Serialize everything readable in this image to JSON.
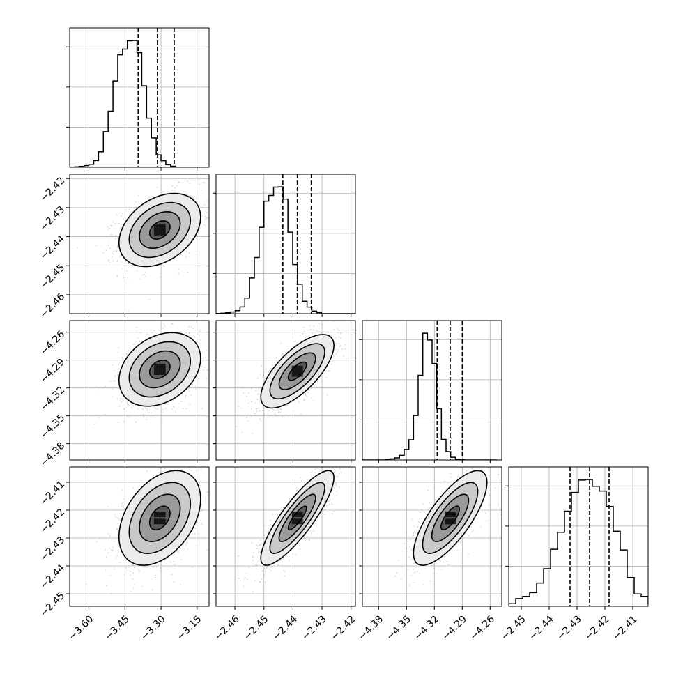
{
  "chart_data": {
    "type": "corner",
    "n_params": 4,
    "grid": true,
    "colors": {
      "contour": "#000000",
      "scatter": "#8c8c8c",
      "density_max": "#000000",
      "grid": "#b0b0b0"
    },
    "parameters": [
      {
        "range": [
          -3.68,
          -3.1
        ],
        "ticks": [
          "−3.60",
          "−3.45",
          "−3.30",
          "−3.15"
        ],
        "tick_values": [
          -3.6,
          -3.45,
          -3.3,
          -3.15
        ],
        "quantiles": [
          -3.395,
          -3.315,
          -3.245
        ],
        "histogram": {
          "edges_start": -3.68,
          "bin_width": 0.02,
          "counts": [
            1,
            2,
            4,
            8,
            14,
            32,
            74,
            170,
            268,
            412,
            537,
            564,
            604,
            605,
            547,
            389,
            234,
            140,
            59,
            31,
            12,
            5,
            0,
            0,
            0,
            0,
            0,
            0,
            0
          ]
        }
      },
      {
        "range": [
          -2.4665,
          -2.4185
        ],
        "ticks": [
          "−2.46",
          "−2.45",
          "−2.44",
          "−2.43",
          "−2.42"
        ],
        "tick_values": [
          -2.46,
          -2.45,
          -2.44,
          -2.43,
          -2.42
        ],
        "quantiles": [
          -2.4435,
          -2.4385,
          -2.4337
        ],
        "histogram": {
          "edges_start": -2.4665,
          "bin_width": 0.00165,
          "counts": [
            1,
            2,
            4,
            8,
            14,
            32,
            74,
            170,
            268,
            412,
            537,
            564,
            604,
            605,
            547,
            389,
            234,
            140,
            59,
            31,
            12,
            5,
            0,
            0,
            0,
            0,
            0,
            0,
            0
          ]
        }
      },
      {
        "range": [
          -4.3975,
          -4.2475
        ],
        "ticks": [
          "−4.38",
          "−4.35",
          "−4.32",
          "−4.29",
          "−4.26"
        ],
        "tick_values": [
          -4.38,
          -4.35,
          -4.32,
          -4.29,
          -4.26
        ],
        "quantiles": [
          -4.317,
          -4.303,
          -4.29
        ],
        "histogram": {
          "edges_start": -4.3975,
          "bin_width": 0.005,
          "counts": [
            0,
            0,
            0,
            0,
            0,
            2,
            5,
            10,
            22,
            50,
            96,
            212,
            403,
            603,
            571,
            459,
            244,
            98,
            40,
            13,
            4,
            2,
            0,
            0,
            0,
            0,
            0,
            0,
            0
          ]
        }
      },
      {
        "range": [
          -2.4545,
          -2.4045
        ],
        "ticks": [
          "−2.45",
          "−2.44",
          "−2.43",
          "−2.42",
          "−2.41"
        ],
        "tick_values": [
          -2.45,
          -2.44,
          -2.43,
          -2.42,
          -2.41
        ],
        "quantiles": [
          -2.4325,
          -2.4255,
          -2.4185
        ],
        "histogram": {
          "edges_start": -2.4545,
          "bin_width": 0.0025,
          "counts": [
            12,
            35,
            45,
            62,
            105,
            170,
            258,
            335,
            430,
            515,
            571,
            573,
            543,
            521,
            452,
            339,
            255,
            130,
            56,
            45,
            12
          ]
        }
      }
    ],
    "pairs": [
      {
        "row": 1,
        "col": 0,
        "center": [
          -3.305,
          -2.4377
        ],
        "sigma": [
          0.085,
          0.0063
        ],
        "rho": 0.35
      },
      {
        "row": 2,
        "col": 0,
        "center": [
          -3.305,
          -4.3
        ],
        "sigma": [
          0.085,
          0.0198
        ],
        "rho": 0.3
      },
      {
        "row": 2,
        "col": 1,
        "center": [
          -2.4385,
          -4.302
        ],
        "sigma": [
          0.0063,
          0.0198
        ],
        "rho": 0.7
      },
      {
        "row": 3,
        "col": 0,
        "center": [
          -3.305,
          -2.4228
        ],
        "sigma": [
          0.085,
          0.0085
        ],
        "rho": 0.4
      },
      {
        "row": 3,
        "col": 1,
        "center": [
          -2.4385,
          -2.4228
        ],
        "sigma": [
          0.0063,
          0.0085
        ],
        "rho": 0.85
      },
      {
        "row": 3,
        "col": 2,
        "center": [
          -4.303,
          -2.4228
        ],
        "sigma": [
          0.0198,
          0.0085
        ],
        "rho": 0.75
      }
    ],
    "contour_levels_sigma": [
      0.5,
      1.0,
      1.5,
      2.0
    ]
  }
}
